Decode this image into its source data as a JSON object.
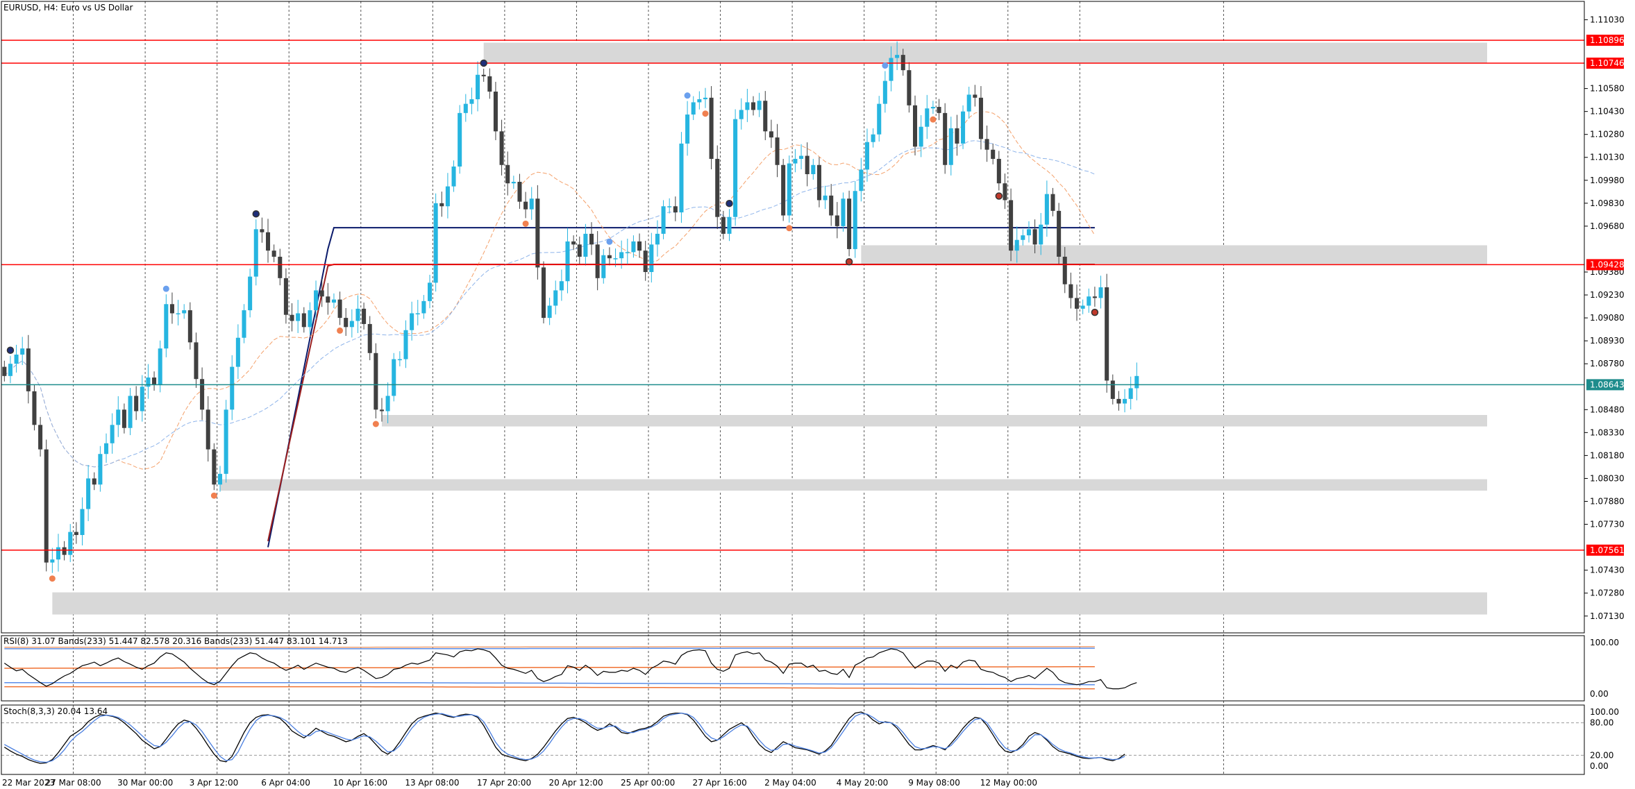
{
  "window": {
    "symbol_title": "EURUSD, H4:  Euro vs US Dollar"
  },
  "chart_data": [
    {
      "type": "candlestick",
      "panel": "price",
      "title": "EURUSD, H4:  Euro vs US Dollar",
      "ylim": [
        1.0702,
        1.1115
      ],
      "y_ticks": [
        "1.11030",
        "1.10580",
        "1.10430",
        "1.10280",
        "1.10130",
        "1.09980",
        "1.09830",
        "1.09680",
        "1.09380",
        "1.09230",
        "1.09080",
        "1.08930",
        "1.08780",
        "1.08480",
        "1.08330",
        "1.08180",
        "1.08030",
        "1.07880",
        "1.07730",
        "1.07430",
        "1.07280",
        "1.07130"
      ],
      "price_lines": [
        {
          "label": "1.10896",
          "value": 1.10896,
          "color": "#ff0000"
        },
        {
          "label": "1.10746",
          "value": 1.10746,
          "color": "#ff0000"
        },
        {
          "label": "1.09428",
          "value": 1.09428,
          "color": "#ff0000"
        },
        {
          "label": "1.07561",
          "value": 1.07561,
          "color": "#ff0000"
        },
        {
          "label": "1.08643",
          "value": 1.08643,
          "color": "#1e8c8c"
        }
      ],
      "zones": [
        {
          "start": 1.10745,
          "end": 1.1088,
          "from_bar": 80
        },
        {
          "start": 1.09425,
          "end": 1.09555,
          "from_bar": 143
        },
        {
          "start": 1.0837,
          "end": 1.08445,
          "from_bar": 63
        },
        {
          "start": 1.0795,
          "end": 1.08025,
          "from_bar": 36
        },
        {
          "start": 1.0714,
          "end": 1.07285,
          "from_bar": 8
        }
      ],
      "x_tick_labels": [
        "22 Mar 2023",
        "27 Mar 08:00",
        "30 Mar 00:00",
        "3 Apr 12:00",
        "6 Apr 04:00",
        "10 Apr 16:00",
        "13 Apr 08:00",
        "17 Apr 20:00",
        "20 Apr 12:00",
        "25 Apr 00:00",
        "27 Apr 16:00",
        "2 May 04:00",
        "4 May 20:00",
        "9 May 08:00",
        "12 May 00:00"
      ],
      "x_tick_bars": [
        0,
        12,
        24,
        36,
        48,
        60,
        72,
        84,
        96,
        108,
        120,
        132,
        144,
        156,
        168
      ],
      "bars_total": 216,
      "closes": [
        1.087,
        1.0878,
        1.0884,
        1.0888,
        1.086,
        1.0838,
        1.0822,
        1.0748,
        1.075,
        1.0758,
        1.0753,
        1.0768,
        1.0766,
        1.0783,
        1.0803,
        1.0799,
        1.0819,
        1.0826,
        1.0838,
        1.0848,
        1.0836,
        1.0857,
        1.0847,
        1.0863,
        1.0869,
        1.0864,
        1.0888,
        1.0917,
        1.0911,
        1.0911,
        1.0913,
        1.0892,
        1.0868,
        1.0848,
        1.0822,
        1.0799,
        1.0806,
        1.0848,
        1.0876,
        1.0895,
        1.0913,
        1.0935,
        1.0966,
        1.0964,
        1.0952,
        1.0948,
        1.0934,
        1.091,
        1.0906,
        1.0911,
        1.0902,
        1.0913,
        1.0926,
        1.0922,
        1.0918,
        1.092,
        1.0908,
        1.0902,
        1.0906,
        1.0914,
        1.0904,
        1.0885,
        1.0848,
        1.0847,
        1.0857,
        1.0881,
        1.0881,
        1.09,
        1.0911,
        1.0911,
        1.0919,
        1.0931,
        1.0983,
        1.0981,
        1.0994,
        1.1007,
        1.1042,
        1.1048,
        1.1051,
        1.1067,
        1.1066,
        1.1056,
        1.103,
        1.1008,
        1.0996,
        1.0997,
        1.0984,
        1.0979,
        1.0986,
        1.0941,
        1.0908,
        1.0916,
        1.0926,
        1.0932,
        1.0958,
        1.0956,
        1.0948,
        1.0963,
        1.0956,
        1.0934,
        1.0949,
        1.0947,
        1.0947,
        1.0951,
        1.0951,
        1.0958,
        1.0952,
        1.0938,
        1.0956,
        1.0963,
        1.0981,
        1.0981,
        1.0977,
        1.1022,
        1.1041,
        1.1049,
        1.1051,
        1.1052,
        1.1012,
        1.0974,
        1.0963,
        1.0974,
        1.1038,
        1.1044,
        1.1049,
        1.1044,
        1.105,
        1.103,
        1.1026,
        1.1008,
        1.0975,
        1.1009,
        1.1012,
        1.1014,
        1.1002,
        1.1008,
        1.0985,
        1.0988,
        1.0975,
        1.0968,
        1.0986,
        1.0953,
        1.0991,
        1.1005,
        1.1023,
        1.1028,
        1.1048,
        1.1063,
        1.1078,
        1.108,
        1.107,
        1.1047,
        1.102,
        1.1033,
        1.1045,
        1.1046,
        1.1042,
        1.1008,
        1.1032,
        1.1022,
        1.1043,
        1.1054,
        1.1052,
        1.1025,
        1.1018,
        1.1012,
        1.0996,
        1.0985,
        1.0952,
        1.0959,
        1.0962,
        1.0966,
        1.0956,
        1.0969,
        1.0989,
        1.0978,
        1.0948,
        1.093,
        1.0921,
        1.0914,
        1.0916,
        1.0922,
        1.0921,
        1.0928,
        1.0867,
        1.0855,
        1.0852,
        1.0855,
        1.0862,
        1.087
      ],
      "bull_color": "#26b5e0",
      "bear_color": "#404040",
      "moving_averages": [
        {
          "color": "#0a1a6b",
          "style": "solid"
        },
        {
          "color": "#9a1f1f",
          "style": "solid"
        },
        {
          "color": "#f4a06a",
          "style": "dashed"
        },
        {
          "color": "#8eb4ea",
          "style": "dashed"
        }
      ],
      "fractal_marks": [
        {
          "bar": 1,
          "kind": "high",
          "color": "#1f2f7a"
        },
        {
          "bar": 8,
          "kind": "low",
          "color": "#f08050"
        },
        {
          "bar": 27,
          "kind": "high",
          "color": "#6aa0ee"
        },
        {
          "bar": 35,
          "kind": "low",
          "color": "#f08050"
        },
        {
          "bar": 42,
          "kind": "high",
          "color": "#1f2f7a"
        },
        {
          "bar": 56,
          "kind": "low",
          "color": "#f08050"
        },
        {
          "bar": 62,
          "kind": "low",
          "color": "#f08050"
        },
        {
          "bar": 80,
          "kind": "high",
          "color": "#1f2f7a"
        },
        {
          "bar": 87,
          "kind": "low",
          "color": "#f08050"
        },
        {
          "bar": 101,
          "kind": "high",
          "color": "#6aa0ee"
        },
        {
          "bar": 114,
          "kind": "high",
          "color": "#6aa0ee"
        },
        {
          "bar": 117,
          "kind": "low",
          "color": "#f08050"
        },
        {
          "bar": 121,
          "kind": "high",
          "color": "#1f2f7a"
        },
        {
          "bar": 131,
          "kind": "low",
          "color": "#f08050"
        },
        {
          "bar": 141,
          "kind": "low",
          "color": "#c0392b"
        },
        {
          "bar": 147,
          "kind": "high",
          "color": "#6aa0ee"
        },
        {
          "bar": 155,
          "kind": "low",
          "color": "#f08050"
        },
        {
          "bar": 166,
          "kind": "low",
          "color": "#c0392b"
        },
        {
          "bar": 182,
          "kind": "low",
          "color": "#c0392b"
        }
      ]
    },
    {
      "type": "line",
      "panel": "rsi",
      "title": "RSI(8) 31.07 Bands(233) 51.447 82.578 20.316 Bands(233) 51.447 83.101 14.713",
      "ylim": [
        0,
        100
      ],
      "y_ticks": [
        "100.00",
        "0.00"
      ],
      "series": [
        {
          "values": [
            60,
            52,
            45,
            48,
            38,
            30,
            22,
            15,
            20,
            28,
            35,
            40,
            48,
            55,
            58,
            62,
            55,
            60,
            66,
            70,
            63,
            58,
            52,
            48,
            55,
            60,
            72,
            80,
            78,
            70,
            62,
            50,
            40,
            30,
            22,
            18,
            25,
            40,
            55,
            68,
            74,
            80,
            78,
            70,
            64,
            60,
            52,
            46,
            50,
            56,
            48,
            54,
            60,
            56,
            52,
            50,
            44,
            42,
            48,
            52,
            46,
            38,
            30,
            32,
            38,
            48,
            50,
            56,
            60,
            58,
            62,
            66,
            80,
            78,
            76,
            72,
            82,
            85,
            84,
            88,
            86,
            82,
            70,
            56,
            50,
            48,
            44,
            40,
            46,
            30,
            24,
            28,
            34,
            38,
            55,
            52,
            46,
            56,
            48,
            36,
            44,
            42,
            42,
            46,
            44,
            50,
            46,
            38,
            50,
            56,
            64,
            62,
            58,
            75,
            82,
            85,
            86,
            84,
            60,
            48,
            44,
            50,
            76,
            80,
            82,
            78,
            80,
            66,
            62,
            54,
            40,
            58,
            60,
            60,
            52,
            56,
            44,
            46,
            40,
            38,
            48,
            32,
            56,
            62,
            70,
            72,
            80,
            84,
            88,
            86,
            80,
            64,
            50,
            58,
            64,
            64,
            60,
            44,
            56,
            50,
            62,
            66,
            64,
            48,
            44,
            42,
            36,
            32,
            24,
            30,
            32,
            36,
            30,
            40,
            50,
            42,
            28,
            22,
            20,
            18,
            20,
            24,
            24,
            28,
            12,
            10,
            10,
            12,
            18,
            22
          ]
        }
      ],
      "bands": [
        {
          "values": [
            91,
            91,
            92,
            92
          ],
          "color": "#f0a070"
        },
        {
          "values": [
            88,
            88,
            89,
            89
          ],
          "color": "#5b8ee8"
        },
        {
          "values": [
            50,
            51,
            52,
            53
          ],
          "color": "#f07030"
        },
        {
          "values": [
            22,
            22,
            20,
            18
          ],
          "color": "#5b8ee8"
        },
        {
          "values": [
            14,
            14,
            12,
            10
          ],
          "color": "#f07030"
        }
      ]
    },
    {
      "type": "line",
      "panel": "stochastic",
      "title": "Stoch(8,3,3) 20.04 13.64",
      "ylim": [
        0,
        100
      ],
      "y_ticks": [
        "100.00",
        "80.00",
        "20.00",
        "0.00"
      ],
      "series": [
        {
          "name": "main",
          "color": "#000000",
          "values": [
            35,
            28,
            22,
            18,
            12,
            8,
            5,
            6,
            12,
            25,
            40,
            55,
            62,
            70,
            82,
            90,
            95,
            94,
            92,
            88,
            80,
            70,
            60,
            48,
            40,
            32,
            36,
            50,
            65,
            78,
            85,
            82,
            70,
            55,
            38,
            22,
            10,
            8,
            18,
            40,
            62,
            80,
            90,
            94,
            95,
            92,
            88,
            78,
            65,
            58,
            52,
            60,
            70,
            64,
            58,
            55,
            50,
            45,
            48,
            55,
            60,
            52,
            40,
            28,
            22,
            30,
            45,
            62,
            78,
            88,
            92,
            95,
            98,
            96,
            92,
            90,
            94,
            96,
            95,
            90,
            75,
            55,
            35,
            22,
            18,
            15,
            12,
            10,
            14,
            22,
            35,
            50,
            65,
            78,
            88,
            90,
            86,
            80,
            72,
            66,
            70,
            78,
            72,
            62,
            60,
            64,
            68,
            70,
            74,
            82,
            92,
            96,
            98,
            98,
            95,
            85,
            70,
            55,
            45,
            48,
            58,
            68,
            74,
            80,
            72,
            55,
            40,
            30,
            25,
            35,
            45,
            40,
            34,
            32,
            30,
            26,
            22,
            28,
            38,
            55,
            72,
            88,
            98,
            100,
            95,
            85,
            78,
            82,
            80,
            70,
            55,
            40,
            30,
            30,
            34,
            38,
            35,
            30,
            42,
            55,
            70,
            82,
            90,
            88,
            75,
            58,
            40,
            28,
            25,
            30,
            40,
            55,
            62,
            58,
            48,
            36,
            28,
            25,
            22,
            18,
            15,
            14,
            15,
            16,
            12,
            10,
            14,
            22
          ]
        },
        {
          "name": "signal",
          "color": "#4a7fe0",
          "values": [
            40,
            34,
            28,
            22,
            16,
            11,
            8,
            7,
            10,
            18,
            30,
            45,
            56,
            64,
            74,
            84,
            92,
            94,
            93,
            90,
            84,
            76,
            66,
            56,
            46,
            38,
            36,
            44,
            56,
            70,
            80,
            82,
            76,
            64,
            48,
            32,
            18,
            10,
            12,
            26,
            48,
            68,
            84,
            92,
            94,
            93,
            90,
            84,
            74,
            64,
            56,
            56,
            64,
            66,
            62,
            58,
            54,
            50,
            48,
            52,
            56,
            54,
            46,
            36,
            26,
            28,
            38,
            54,
            70,
            82,
            90,
            94,
            96,
            97,
            94,
            91,
            92,
            94,
            95,
            92,
            82,
            64,
            44,
            30,
            22,
            18,
            14,
            12,
            13,
            18,
            28,
            42,
            58,
            72,
            84,
            88,
            88,
            84,
            76,
            70,
            70,
            74,
            74,
            66,
            62,
            62,
            66,
            68,
            72,
            78,
            88,
            94,
            96,
            98,
            96,
            90,
            78,
            62,
            52,
            48,
            54,
            62,
            70,
            76,
            74,
            62,
            48,
            36,
            29,
            31,
            40,
            41,
            37,
            34,
            31,
            28,
            24,
            26,
            34,
            48,
            64,
            80,
            92,
            97,
            96,
            90,
            82,
            81,
            80,
            74,
            62,
            48,
            36,
            32,
            33,
            36,
            35,
            32,
            38,
            50,
            64,
            76,
            86,
            88,
            80,
            64,
            48,
            34,
            28,
            29,
            36,
            48,
            58,
            58,
            50,
            40,
            32,
            27,
            24,
            20,
            17,
            15,
            15,
            16,
            14,
            12,
            13,
            18
          ]
        }
      ],
      "levels": [
        80,
        20
      ]
    }
  ]
}
